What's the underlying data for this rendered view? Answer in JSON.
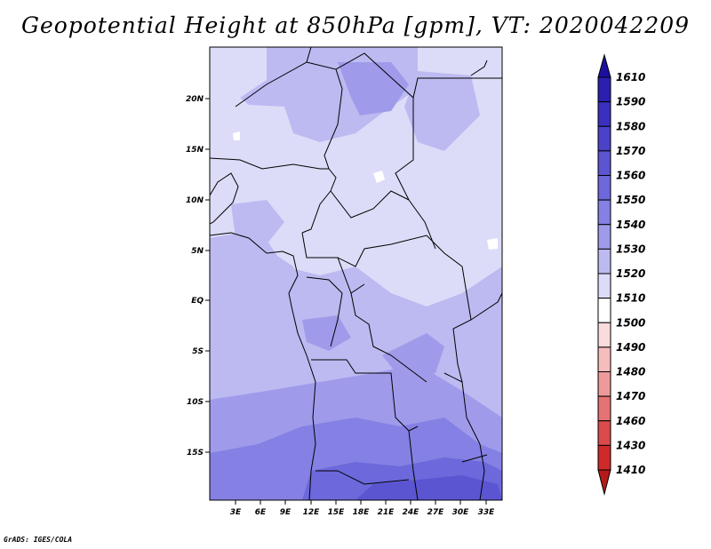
{
  "title": "Geopotential Height at 850hPa [gpm], VT: 2020042209",
  "credit": "GrADS: IGES/COLA",
  "map": {
    "lat_labels": [
      "20N",
      "15N",
      "10N",
      "5N",
      "EQ",
      "5S",
      "10S",
      "15S"
    ],
    "lon_labels": [
      "3E",
      "6E",
      "9E",
      "12E",
      "15E",
      "18E",
      "21E",
      "24E",
      "27E",
      "30E",
      "33E"
    ]
  },
  "colorbar": {
    "levels": [
      "1610",
      "1590",
      "1580",
      "1570",
      "1560",
      "1550",
      "1540",
      "1530",
      "1520",
      "1510",
      "1500",
      "1490",
      "1480",
      "1470",
      "1460",
      "1430",
      "1410"
    ],
    "colors": [
      "#1c0fa0",
      "#2b1fb0",
      "#3a30bf",
      "#4a42c9",
      "#5b55d2",
      "#6d68db",
      "#8580e3",
      "#9f9bea",
      "#bcbaf1",
      "#dcdcf8",
      "#ffffff",
      "#fbdcdc",
      "#f7bcbc",
      "#ef9a9a",
      "#e57373",
      "#dc4b4b",
      "#cf2a2a",
      "#b51a1a"
    ]
  }
}
